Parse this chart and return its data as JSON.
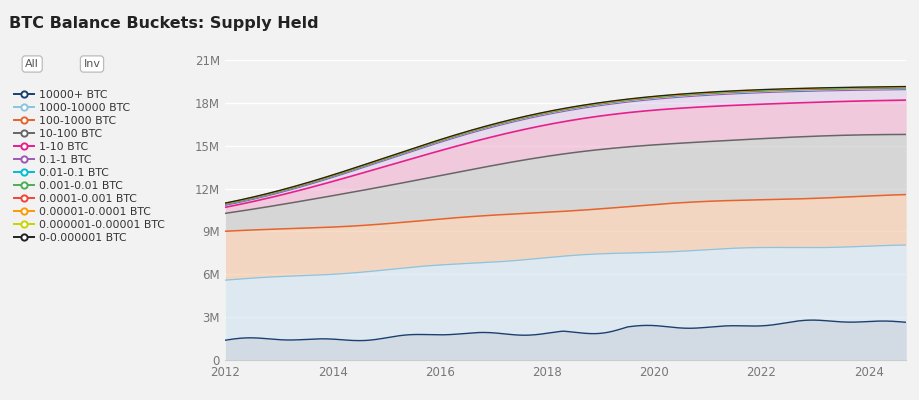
{
  "title": "BTC Balance Buckets: Supply Held",
  "background_color": "#f2f2f2",
  "xlim": [
    2012,
    2024.7
  ],
  "ylim": [
    0,
    21000000
  ],
  "yticks": [
    0,
    3000000,
    6000000,
    9000000,
    12000000,
    15000000,
    18000000,
    21000000
  ],
  "ytick_labels": [
    "0",
    "3M",
    "6M",
    "9M",
    "12M",
    "15M",
    "18M",
    "21M"
  ],
  "xticks": [
    2012,
    2014,
    2016,
    2018,
    2020,
    2022,
    2024
  ],
  "legend_labels": [
    "10000+ BTC",
    "1000-10000 BTC",
    "100-1000 BTC",
    "10-100 BTC",
    "1-10 BTC",
    "0.1-1 BTC",
    "0.01-0.1 BTC",
    "0.001-0.01 BTC",
    "0.0001-0.001 BTC",
    "0.00001-0.0001 BTC",
    "0.000001-0.00001 BTC",
    "0-0.000001 BTC"
  ],
  "legend_colors": [
    "#1b3f6e",
    "#8ac4e0",
    "#e8622a",
    "#666666",
    "#e91e8c",
    "#9b59b6",
    "#00bcd4",
    "#4caf50",
    "#f44336",
    "#ff9800",
    "#c8d400",
    "#222222"
  ],
  "fill_colors": [
    "#b8c8d8",
    "#cce0f0",
    "#f5c8a8",
    "#c8c8c8",
    "#f0a8cc",
    "#d8c0e8",
    "#b0e8f0",
    "#b8e8b8",
    "#ffc8c8",
    "#ffe0b0",
    "#e8f080",
    "#d0d0d0"
  ],
  "fill_alphas": [
    0.55,
    0.55,
    0.65,
    0.65,
    0.55,
    0.45,
    0.4,
    0.4,
    0.4,
    0.4,
    0.4,
    0.35
  ]
}
